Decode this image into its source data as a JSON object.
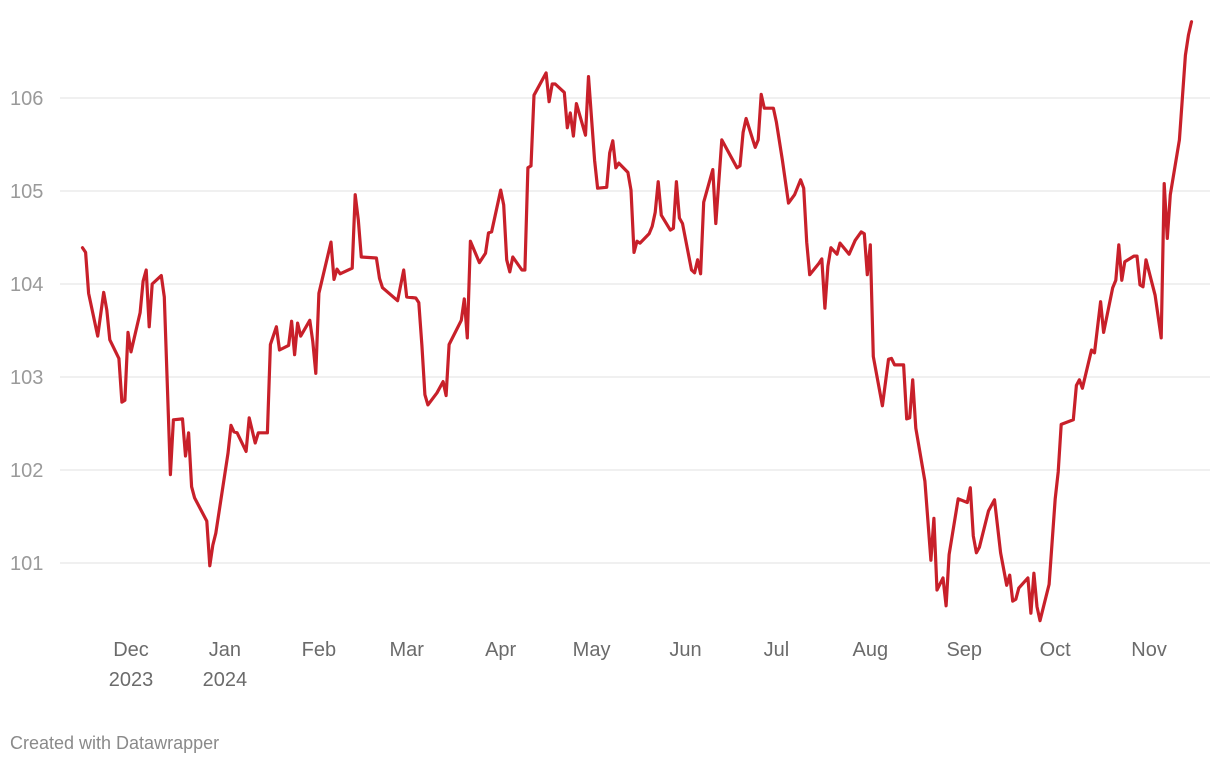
{
  "chart_data": {
    "type": "line",
    "title": "",
    "xlabel": "",
    "ylabel": "",
    "ylim": [
      100.3,
      106.9
    ],
    "grid": true,
    "line_color": "#c8202a",
    "y_ticks": [
      "101",
      "102",
      "103",
      "104",
      "105",
      "106"
    ],
    "x_ticks": [
      {
        "date": "2023-12-01",
        "label": "Dec",
        "sub": "2023"
      },
      {
        "date": "2024-01-01",
        "label": "Jan",
        "sub": "2024"
      },
      {
        "date": "2024-02-01",
        "label": "Feb",
        "sub": ""
      },
      {
        "date": "2024-03-01",
        "label": "Mar",
        "sub": ""
      },
      {
        "date": "2024-04-01",
        "label": "Apr",
        "sub": ""
      },
      {
        "date": "2024-05-01",
        "label": "May",
        "sub": ""
      },
      {
        "date": "2024-06-01",
        "label": "Jun",
        "sub": ""
      },
      {
        "date": "2024-07-01",
        "label": "Jul",
        "sub": ""
      },
      {
        "date": "2024-08-01",
        "label": "Aug",
        "sub": ""
      },
      {
        "date": "2024-09-01",
        "label": "Sep",
        "sub": ""
      },
      {
        "date": "2024-10-01",
        "label": "Oct",
        "sub": ""
      },
      {
        "date": "2024-11-01",
        "label": "Nov",
        "sub": ""
      }
    ],
    "series": [
      {
        "points": [
          [
            "2023-11-15",
            104.39
          ],
          [
            "2023-11-16",
            104.34
          ],
          [
            "2023-11-17",
            103.9
          ],
          [
            "2023-11-20",
            103.44
          ],
          [
            "2023-11-22",
            103.91
          ],
          [
            "2023-11-23",
            103.72
          ],
          [
            "2023-11-24",
            103.4
          ],
          [
            "2023-11-27",
            103.2
          ],
          [
            "2023-11-28",
            102.73
          ],
          [
            "2023-11-29",
            102.75
          ],
          [
            "2023-11-30",
            103.48
          ],
          [
            "2023-12-01",
            103.27
          ],
          [
            "2023-12-04",
            103.69
          ],
          [
            "2023-12-05",
            104.03
          ],
          [
            "2023-12-06",
            104.15
          ],
          [
            "2023-12-07",
            103.54
          ],
          [
            "2023-12-08",
            104.0
          ],
          [
            "2023-12-11",
            104.09
          ],
          [
            "2023-12-12",
            103.86
          ],
          [
            "2023-12-14",
            101.95
          ],
          [
            "2023-12-15",
            102.54
          ],
          [
            "2023-12-18",
            102.55
          ],
          [
            "2023-12-19",
            102.15
          ],
          [
            "2023-12-20",
            102.4
          ],
          [
            "2023-12-21",
            101.82
          ],
          [
            "2023-12-22",
            101.7
          ],
          [
            "2023-12-26",
            101.45
          ],
          [
            "2023-12-27",
            100.97
          ],
          [
            "2023-12-28",
            101.19
          ],
          [
            "2023-12-29",
            101.32
          ],
          [
            "2024-01-02",
            102.18
          ],
          [
            "2024-01-03",
            102.48
          ],
          [
            "2024-01-04",
            102.41
          ],
          [
            "2024-01-05",
            102.4
          ],
          [
            "2024-01-08",
            102.2
          ],
          [
            "2024-01-09",
            102.56
          ],
          [
            "2024-01-11",
            102.29
          ],
          [
            "2024-01-12",
            102.4
          ],
          [
            "2024-01-15",
            102.4
          ],
          [
            "2024-01-16",
            103.35
          ],
          [
            "2024-01-18",
            103.54
          ],
          [
            "2024-01-19",
            103.29
          ],
          [
            "2024-01-22",
            103.34
          ],
          [
            "2024-01-23",
            103.6
          ],
          [
            "2024-01-24",
            103.24
          ],
          [
            "2024-01-25",
            103.58
          ],
          [
            "2024-01-26",
            103.44
          ],
          [
            "2024-01-29",
            103.61
          ],
          [
            "2024-01-30",
            103.38
          ],
          [
            "2024-01-31",
            103.04
          ],
          [
            "2024-02-01",
            103.9
          ],
          [
            "2024-02-05",
            104.45
          ],
          [
            "2024-02-06",
            104.05
          ],
          [
            "2024-02-07",
            104.16
          ],
          [
            "2024-02-08",
            104.11
          ],
          [
            "2024-02-12",
            104.17
          ],
          [
            "2024-02-13",
            104.96
          ],
          [
            "2024-02-14",
            104.69
          ],
          [
            "2024-02-15",
            104.29
          ],
          [
            "2024-02-20",
            104.28
          ],
          [
            "2024-02-21",
            104.06
          ],
          [
            "2024-02-22",
            103.96
          ],
          [
            "2024-02-27",
            103.82
          ],
          [
            "2024-02-29",
            104.15
          ],
          [
            "2024-03-01",
            103.86
          ],
          [
            "2024-03-04",
            103.85
          ],
          [
            "2024-03-05",
            103.8
          ],
          [
            "2024-03-06",
            103.34
          ],
          [
            "2024-03-07",
            102.81
          ],
          [
            "2024-03-08",
            102.7
          ],
          [
            "2024-03-11",
            102.83
          ],
          [
            "2024-03-13",
            102.95
          ],
          [
            "2024-03-14",
            102.8
          ],
          [
            "2024-03-15",
            103.35
          ],
          [
            "2024-03-19",
            103.61
          ],
          [
            "2024-03-20",
            103.84
          ],
          [
            "2024-03-21",
            103.42
          ],
          [
            "2024-03-22",
            104.46
          ],
          [
            "2024-03-25",
            104.23
          ],
          [
            "2024-03-27",
            104.33
          ],
          [
            "2024-03-28",
            104.55
          ],
          [
            "2024-03-29",
            104.56
          ],
          [
            "2024-04-01",
            105.01
          ],
          [
            "2024-04-02",
            104.85
          ],
          [
            "2024-04-03",
            104.26
          ],
          [
            "2024-04-04",
            104.13
          ],
          [
            "2024-04-05",
            104.29
          ],
          [
            "2024-04-08",
            104.15
          ],
          [
            "2024-04-09",
            104.15
          ],
          [
            "2024-04-10",
            105.25
          ],
          [
            "2024-04-11",
            105.27
          ],
          [
            "2024-04-12",
            106.03
          ],
          [
            "2024-04-16",
            106.27
          ],
          [
            "2024-04-17",
            105.96
          ],
          [
            "2024-04-18",
            106.15
          ],
          [
            "2024-04-19",
            106.15
          ],
          [
            "2024-04-22",
            106.06
          ],
          [
            "2024-04-23",
            105.68
          ],
          [
            "2024-04-24",
            105.84
          ],
          [
            "2024-04-25",
            105.59
          ],
          [
            "2024-04-26",
            105.94
          ],
          [
            "2024-04-29",
            105.6
          ],
          [
            "2024-04-30",
            106.23
          ],
          [
            "2024-05-02",
            105.33
          ],
          [
            "2024-05-03",
            105.03
          ],
          [
            "2024-05-06",
            105.04
          ],
          [
            "2024-05-07",
            105.41
          ],
          [
            "2024-05-08",
            105.54
          ],
          [
            "2024-05-09",
            105.25
          ],
          [
            "2024-05-10",
            105.3
          ],
          [
            "2024-05-13",
            105.2
          ],
          [
            "2024-05-14",
            105.01
          ],
          [
            "2024-05-15",
            104.34
          ],
          [
            "2024-05-16",
            104.46
          ],
          [
            "2024-05-17",
            104.44
          ],
          [
            "2024-05-20",
            104.54
          ],
          [
            "2024-05-21",
            104.62
          ],
          [
            "2024-05-22",
            104.77
          ],
          [
            "2024-05-23",
            105.1
          ],
          [
            "2024-05-24",
            104.74
          ],
          [
            "2024-05-27",
            104.58
          ],
          [
            "2024-05-28",
            104.6
          ],
          [
            "2024-05-29",
            105.1
          ],
          [
            "2024-05-30",
            104.71
          ],
          [
            "2024-05-31",
            104.65
          ],
          [
            "2024-06-03",
            104.15
          ],
          [
            "2024-06-04",
            104.12
          ],
          [
            "2024-06-05",
            104.26
          ],
          [
            "2024-06-06",
            104.11
          ],
          [
            "2024-06-07",
            104.88
          ],
          [
            "2024-06-10",
            105.23
          ],
          [
            "2024-06-11",
            104.65
          ],
          [
            "2024-06-13",
            105.55
          ],
          [
            "2024-06-18",
            105.25
          ],
          [
            "2024-06-19",
            105.27
          ],
          [
            "2024-06-20",
            105.63
          ],
          [
            "2024-06-21",
            105.78
          ],
          [
            "2024-06-24",
            105.47
          ],
          [
            "2024-06-25",
            105.55
          ],
          [
            "2024-06-26",
            106.04
          ],
          [
            "2024-06-27",
            105.89
          ],
          [
            "2024-06-30",
            105.89
          ],
          [
            "2024-07-01",
            105.74
          ],
          [
            "2024-07-03",
            105.33
          ],
          [
            "2024-07-05",
            104.87
          ],
          [
            "2024-07-07",
            104.96
          ],
          [
            "2024-07-09",
            105.12
          ],
          [
            "2024-07-10",
            105.03
          ],
          [
            "2024-07-11",
            104.45
          ],
          [
            "2024-07-12",
            104.1
          ],
          [
            "2024-07-15",
            104.22
          ],
          [
            "2024-07-16",
            104.27
          ],
          [
            "2024-07-17",
            103.74
          ],
          [
            "2024-07-18",
            104.19
          ],
          [
            "2024-07-19",
            104.39
          ],
          [
            "2024-07-21",
            104.32
          ],
          [
            "2024-07-22",
            104.44
          ],
          [
            "2024-07-25",
            104.32
          ],
          [
            "2024-07-27",
            104.47
          ],
          [
            "2024-07-29",
            104.56
          ],
          [
            "2024-07-30",
            104.54
          ],
          [
            "2024-07-31",
            104.1
          ],
          [
            "2024-08-01",
            104.42
          ],
          [
            "2024-08-02",
            103.22
          ],
          [
            "2024-08-05",
            102.69
          ],
          [
            "2024-08-07",
            103.19
          ],
          [
            "2024-08-08",
            103.2
          ],
          [
            "2024-08-09",
            103.13
          ],
          [
            "2024-08-12",
            103.13
          ],
          [
            "2024-08-13",
            102.55
          ],
          [
            "2024-08-14",
            102.56
          ],
          [
            "2024-08-15",
            102.97
          ],
          [
            "2024-08-16",
            102.45
          ],
          [
            "2024-08-19",
            101.88
          ],
          [
            "2024-08-21",
            101.03
          ],
          [
            "2024-08-22",
            101.48
          ],
          [
            "2024-08-23",
            100.71
          ],
          [
            "2024-08-25",
            100.84
          ],
          [
            "2024-08-26",
            100.54
          ],
          [
            "2024-08-27",
            101.09
          ],
          [
            "2024-08-30",
            101.69
          ],
          [
            "2024-09-02",
            101.65
          ],
          [
            "2024-09-03",
            101.81
          ],
          [
            "2024-09-04",
            101.29
          ],
          [
            "2024-09-05",
            101.11
          ],
          [
            "2024-09-06",
            101.17
          ],
          [
            "2024-09-09",
            101.56
          ],
          [
            "2024-09-11",
            101.68
          ],
          [
            "2024-09-13",
            101.11
          ],
          [
            "2024-09-15",
            100.76
          ],
          [
            "2024-09-16",
            100.87
          ],
          [
            "2024-09-17",
            100.59
          ],
          [
            "2024-09-18",
            100.61
          ],
          [
            "2024-09-19",
            100.73
          ],
          [
            "2024-09-22",
            100.84
          ],
          [
            "2024-09-23",
            100.46
          ],
          [
            "2024-09-24",
            100.89
          ],
          [
            "2024-09-25",
            100.53
          ],
          [
            "2024-09-26",
            100.38
          ],
          [
            "2024-09-29",
            100.77
          ],
          [
            "2024-10-01",
            101.69
          ],
          [
            "2024-10-02",
            101.98
          ],
          [
            "2024-10-03",
            102.49
          ],
          [
            "2024-10-07",
            102.54
          ],
          [
            "2024-10-08",
            102.91
          ],
          [
            "2024-10-09",
            102.97
          ],
          [
            "2024-10-10",
            102.88
          ],
          [
            "2024-10-13",
            103.29
          ],
          [
            "2024-10-14",
            103.26
          ],
          [
            "2024-10-16",
            103.81
          ],
          [
            "2024-10-17",
            103.48
          ],
          [
            "2024-10-20",
            103.96
          ],
          [
            "2024-10-21",
            104.04
          ],
          [
            "2024-10-22",
            104.42
          ],
          [
            "2024-10-23",
            104.04
          ],
          [
            "2024-10-24",
            104.24
          ],
          [
            "2024-10-27",
            104.3
          ],
          [
            "2024-10-28",
            104.3
          ],
          [
            "2024-10-29",
            103.99
          ],
          [
            "2024-10-30",
            103.97
          ],
          [
            "2024-10-31",
            104.26
          ],
          [
            "2024-11-03",
            103.88
          ],
          [
            "2024-11-05",
            103.42
          ],
          [
            "2024-11-06",
            105.08
          ],
          [
            "2024-11-07",
            104.49
          ],
          [
            "2024-11-08",
            104.96
          ],
          [
            "2024-11-11",
            105.55
          ],
          [
            "2024-11-13",
            106.46
          ],
          [
            "2024-11-14",
            106.68
          ],
          [
            "2024-11-15",
            106.82
          ]
        ]
      }
    ]
  },
  "footer": {
    "credit": "Created with Datawrapper"
  }
}
